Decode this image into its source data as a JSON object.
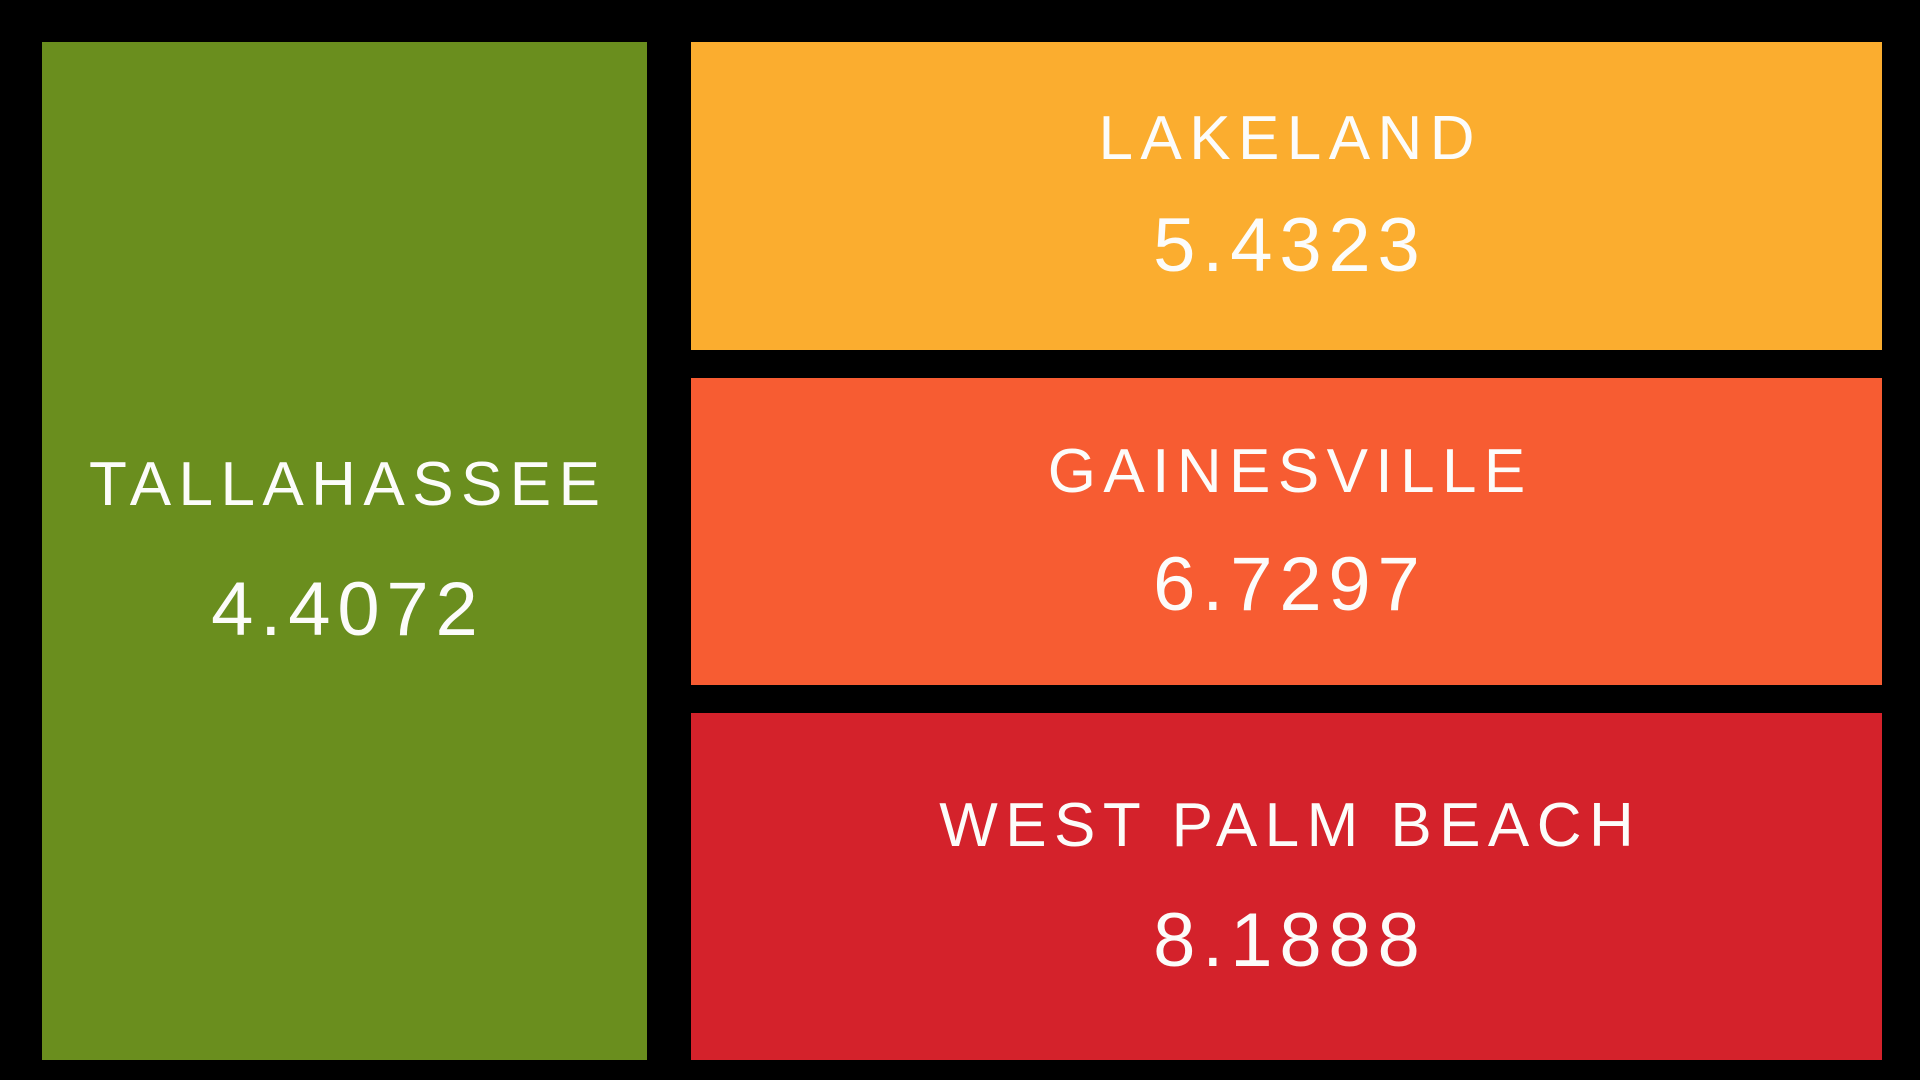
{
  "page": {
    "background": "#000000"
  },
  "chart_data": {
    "type": "treemap",
    "title": "",
    "legend": "none",
    "grid": false,
    "background": "#000000",
    "text_color": "#FCFCFA",
    "arrangement": "one tall tile in left column; three stacked tiles in right column; black gutters between tiles",
    "nodes": [
      {
        "label": "TALLAHASSEE",
        "value": 4.4072,
        "value_text": "4.4072",
        "color": "#6A8E1E"
      },
      {
        "label": "LAKELAND",
        "value": 5.4323,
        "value_text": "5.4323",
        "color": "#FBAD2F"
      },
      {
        "label": "GAINESVILLE",
        "value": 6.7297,
        "value_text": "6.7297",
        "color": "#F75C32"
      },
      {
        "label": "WEST PALM BEACH",
        "value": 8.1888,
        "value_text": "8.1888",
        "color": "#D4222B"
      }
    ]
  }
}
